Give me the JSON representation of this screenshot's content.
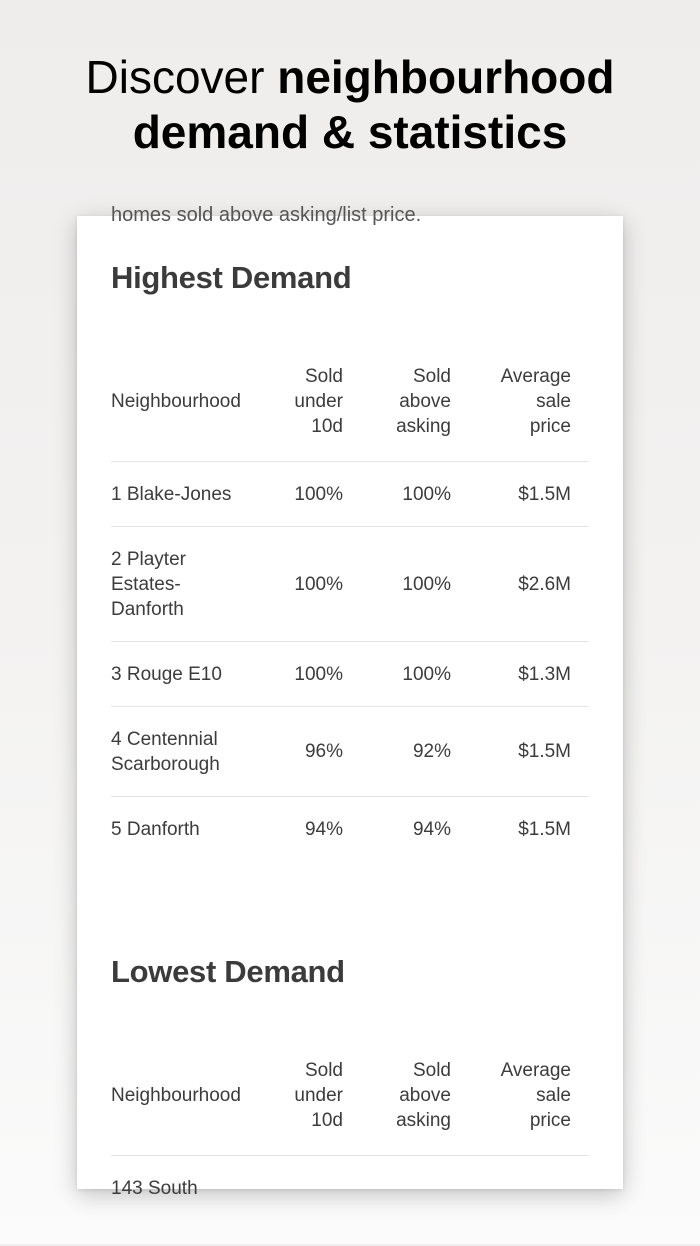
{
  "headline": {
    "prefix": "Discover",
    "bold_part1": "neighbourhood",
    "bold_part2": "demand & statistics"
  },
  "card": {
    "cut_off_text": "homes sold above asking/list price.",
    "columns": {
      "neighbourhood": "Neighbourhood",
      "sold_under": "Sold\nunder\n10d",
      "sold_above": "Sold\nabove\nasking",
      "avg_price": "Average\nsale\nprice"
    },
    "highest": {
      "title": "Highest Demand",
      "rows": [
        {
          "name": "1 Blake-Jones",
          "under": "100%",
          "above": "100%",
          "price": "$1.5M"
        },
        {
          "name": "2 Playter\nEstates-\nDanforth",
          "under": "100%",
          "above": "100%",
          "price": "$2.6M"
        },
        {
          "name": "3 Rouge E10",
          "under": "100%",
          "above": "100%",
          "price": "$1.3M"
        },
        {
          "name": "4 Centennial\nScarborough",
          "under": "96%",
          "above": "92%",
          "price": "$1.5M"
        },
        {
          "name": "5 Danforth",
          "under": "94%",
          "above": "94%",
          "price": "$1.5M"
        }
      ]
    },
    "lowest": {
      "title": "Lowest Demand",
      "rows": [
        {
          "name": "143 South",
          "under": "",
          "above": "",
          "price": ""
        }
      ]
    }
  }
}
